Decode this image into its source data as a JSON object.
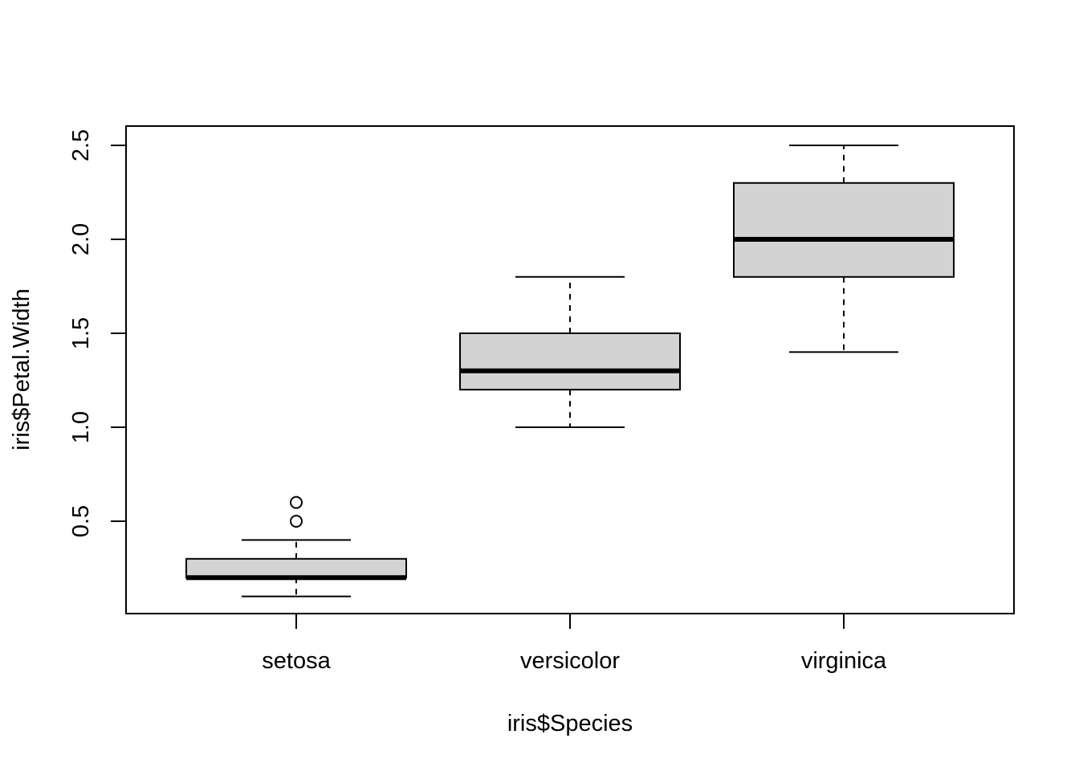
{
  "chart_data": {
    "type": "boxplot",
    "title": "",
    "xlabel": "iris$Species",
    "ylabel": "iris$Petal.Width",
    "categories": [
      "setosa",
      "versicolor",
      "virginica"
    ],
    "yticks": [
      "0.5",
      "1.0",
      "1.5",
      "2.0",
      "2.5"
    ],
    "ylim": [
      0.1,
      2.5
    ],
    "grid": false,
    "boxes": [
      {
        "category": "setosa",
        "whisker_low": 0.1,
        "q1": 0.2,
        "median": 0.2,
        "q3": 0.3,
        "whisker_high": 0.4,
        "outliers": [
          0.5,
          0.6
        ]
      },
      {
        "category": "versicolor",
        "whisker_low": 1.0,
        "q1": 1.2,
        "median": 1.3,
        "q3": 1.5,
        "whisker_high": 1.8,
        "outliers": []
      },
      {
        "category": "virginica",
        "whisker_low": 1.4,
        "q1": 1.8,
        "median": 2.0,
        "q3": 2.3,
        "whisker_high": 2.5,
        "outliers": []
      }
    ],
    "colors": {
      "box_fill": "#d3d3d3",
      "stroke": "#000000"
    }
  }
}
